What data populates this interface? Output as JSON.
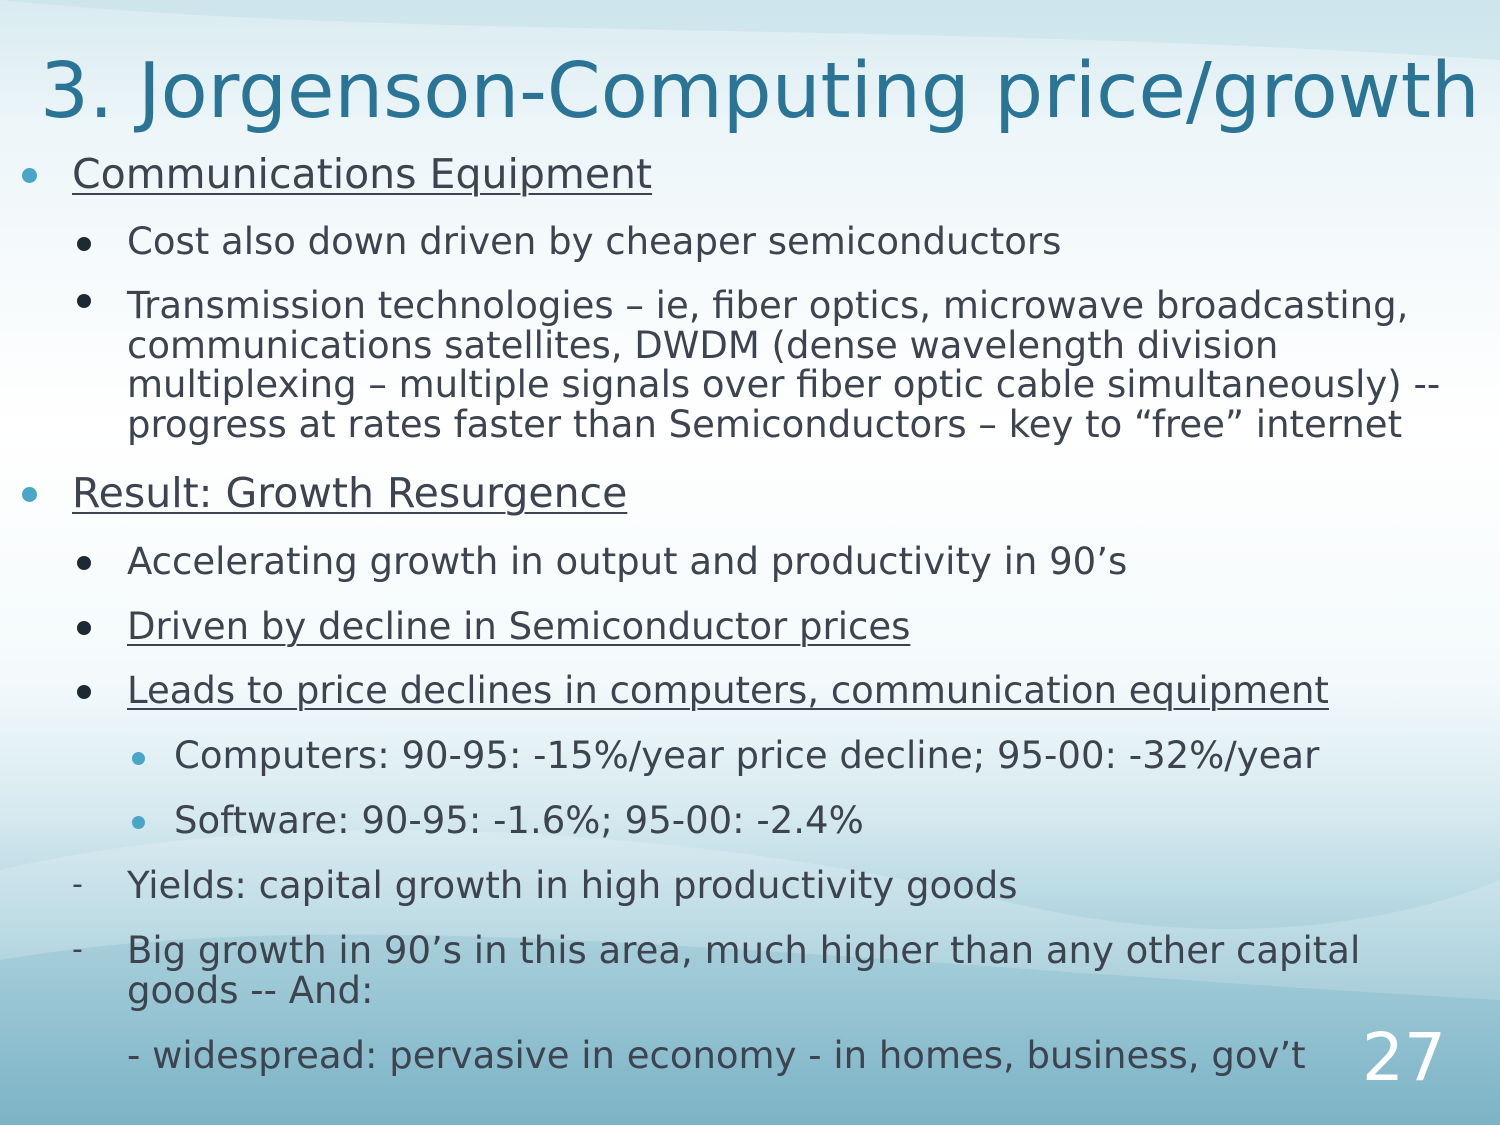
{
  "slide": {
    "title": "3. Jorgenson-Computing price/growth",
    "page_number": "27",
    "accent_color": "#2a7496",
    "bullet_color": "#4aa6c6"
  },
  "section1": {
    "heading": "Communications Equipment",
    "items": [
      "Cost also down driven by cheaper semiconductors",
      "Transmission technologies – ie, fiber optics, microwave broadcasting, communications satellites, DWDM (dense wavelength division multiplexing – multiple signals over fiber optic cable simultaneously) -- progress at rates faster than Semiconductors – key to “free” internet"
    ]
  },
  "section2": {
    "heading": "Result: Growth Resurgence",
    "items": [
      "Accelerating growth in output and productivity in 90’s",
      "Driven by decline in Semiconductor prices",
      "Leads to price declines in computers, communication equipment"
    ],
    "subitems": [
      "Computers: 90-95: -15%/year price decline; 95-00: -32%/year",
      "Software: 90-95: -1.6%; 95-00: -2.4%"
    ],
    "dash_items": [
      "Yields: capital growth in high productivity goods",
      "Big growth in 90’s in this area, much higher than any other capital goods  -- And:"
    ],
    "dash_marker": "-",
    "continuation": "- widespread: pervasive in economy - in homes, business, gov’t"
  }
}
